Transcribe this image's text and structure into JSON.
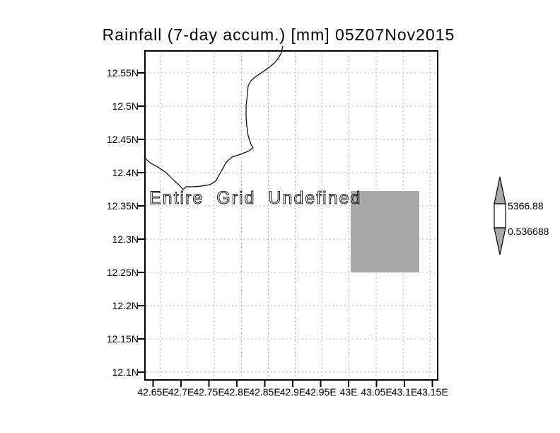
{
  "title": "Rainfall (7-day accum.) [mm] 05Z07Nov2015",
  "map": {
    "message": "Entire Grid Undefined",
    "y_axis_labels": [
      "12.55N",
      "12.5N",
      "12.45N",
      "12.4N",
      "12.35N",
      "12.3N",
      "12.25N",
      "12.2N",
      "12.15N",
      "12.1N"
    ],
    "x_axis_labels": [
      "42.65E",
      "42.7E",
      "42.75E",
      "42.8E",
      "42.85E",
      "42.9E",
      "42.95E",
      "43E",
      "43.05E",
      "43.1E",
      "43.15E"
    ]
  },
  "colorbar": {
    "max_label": "5366.88",
    "min_label": "0.536688"
  },
  "colors": {
    "shade": "#a9a9a9",
    "grid_dots": "#999999",
    "frame": "#000000",
    "coastline": "#000000",
    "background": "#ffffff"
  },
  "chart_data": {
    "type": "heatmap",
    "title": "Rainfall (7-day accum.) [mm] 05Z07Nov2015",
    "x_ticks": [
      "42.65E",
      "42.7E",
      "42.75E",
      "42.8E",
      "42.85E",
      "42.9E",
      "42.95E",
      "43E",
      "43.05E",
      "43.1E",
      "43.15E"
    ],
    "y_ticks": [
      "12.55N",
      "12.5N",
      "12.45N",
      "12.4N",
      "12.35N",
      "12.3N",
      "12.25N",
      "12.2N",
      "12.15N",
      "12.1N"
    ],
    "x_range_deg_east": [
      42.65,
      43.15
    ],
    "y_range_deg_north": [
      12.1,
      12.55
    ],
    "grid": true,
    "legend_position": "right",
    "annotation": "Entire Grid Undefined",
    "values_plotted": "none (entire grid undefined)",
    "colorbar": {
      "min": 0.536688,
      "max": 5366.88,
      "fill": "#a9a9a9"
    },
    "shaded_cell": {
      "x_deg_east": [
        43.0,
        43.13
      ],
      "y_deg_north": [
        12.25,
        12.37
      ],
      "color": "#a9a9a9"
    }
  }
}
